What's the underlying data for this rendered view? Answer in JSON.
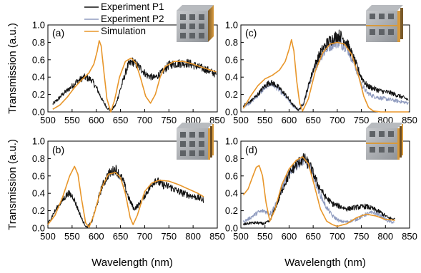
{
  "figure": {
    "legend": [
      {
        "name": "Experiment P1",
        "color": "#111111"
      },
      {
        "name": "Experiment P2",
        "color": "#8f9bbf"
      },
      {
        "name": "Simulation",
        "color": "#e8962a"
      }
    ],
    "ylabel": "Transmission (a.u.)",
    "xlabel": "Wavelength (nm)",
    "colors": {
      "p1": "#111111",
      "p2": "#8f9bbf",
      "sim": "#e8962a"
    },
    "inset_icon": "nanostructure-stack-icon"
  },
  "chart_data": [
    {
      "type": "line",
      "panel": "(a)",
      "xlim": [
        500,
        850
      ],
      "ylim": [
        0,
        1.0
      ],
      "xticks": [
        500,
        550,
        600,
        650,
        700,
        750,
        800,
        850
      ],
      "yticks": [
        0.0,
        0.2,
        0.4,
        0.6,
        0.8,
        1.0
      ],
      "xlabel": "",
      "ylabel": "Transmission (a.u.)",
      "series": [
        {
          "name": "Experiment P1",
          "key": "p1",
          "noisy": true,
          "x": [
            510,
            520,
            530,
            545,
            560,
            575,
            590,
            602,
            612,
            622,
            630,
            640,
            652,
            665,
            675,
            690,
            705,
            720,
            735,
            750,
            770,
            790,
            810,
            830,
            848
          ],
          "y": [
            0.09,
            0.14,
            0.2,
            0.27,
            0.35,
            0.4,
            0.37,
            0.26,
            0.14,
            0.05,
            0.01,
            0.08,
            0.3,
            0.53,
            0.58,
            0.51,
            0.42,
            0.39,
            0.45,
            0.54,
            0.56,
            0.56,
            0.52,
            0.48,
            0.43
          ]
        },
        {
          "name": "Simulation",
          "key": "sim",
          "noisy": false,
          "x": [
            510,
            525,
            540,
            555,
            570,
            585,
            595,
            602,
            606,
            610,
            616,
            622,
            630,
            638,
            648,
            660,
            672,
            682,
            692,
            702,
            712,
            722,
            732,
            742,
            760,
            780,
            800,
            820,
            848
          ],
          "y": [
            0.03,
            0.08,
            0.17,
            0.28,
            0.37,
            0.45,
            0.55,
            0.7,
            0.82,
            0.76,
            0.45,
            0.15,
            0.0,
            0.14,
            0.4,
            0.58,
            0.62,
            0.56,
            0.38,
            0.18,
            0.1,
            0.2,
            0.4,
            0.52,
            0.58,
            0.58,
            0.55,
            0.51,
            0.46
          ]
        }
      ]
    },
    {
      "type": "line",
      "panel": "(c)",
      "xlim": [
        500,
        850
      ],
      "ylim": [
        0,
        1.0
      ],
      "xticks": [
        500,
        550,
        600,
        650,
        700,
        750,
        800,
        850
      ],
      "yticks": [
        0.0,
        0.2,
        0.4,
        0.6,
        0.8,
        1.0
      ],
      "xlabel": "",
      "ylabel": "",
      "series": [
        {
          "name": "Experiment P1",
          "key": "p1",
          "noisy": true,
          "x": [
            505,
            520,
            535,
            550,
            560,
            570,
            582,
            595,
            608,
            620,
            630,
            640,
            652,
            665,
            680,
            695,
            705,
            720,
            735,
            750,
            762,
            775,
            790,
            810,
            830,
            848
          ],
          "y": [
            0.07,
            0.12,
            0.2,
            0.3,
            0.34,
            0.32,
            0.26,
            0.18,
            0.08,
            0.02,
            0.1,
            0.3,
            0.52,
            0.68,
            0.8,
            0.86,
            0.88,
            0.8,
            0.6,
            0.4,
            0.3,
            0.27,
            0.24,
            0.22,
            0.18,
            0.14
          ]
        },
        {
          "name": "Experiment P2",
          "key": "p2",
          "noisy": true,
          "x": [
            505,
            520,
            535,
            550,
            560,
            570,
            582,
            595,
            608,
            620,
            630,
            640,
            652,
            665,
            680,
            695,
            705,
            720,
            735,
            750,
            762,
            775,
            790,
            810,
            830,
            848
          ],
          "y": [
            0.06,
            0.11,
            0.19,
            0.28,
            0.32,
            0.3,
            0.24,
            0.16,
            0.07,
            0.02,
            0.09,
            0.28,
            0.48,
            0.63,
            0.74,
            0.8,
            0.8,
            0.74,
            0.56,
            0.32,
            0.22,
            0.18,
            0.16,
            0.14,
            0.12,
            0.1
          ]
        },
        {
          "name": "Simulation",
          "key": "sim",
          "noisy": false,
          "x": [
            505,
            520,
            535,
            550,
            565,
            580,
            592,
            600,
            605,
            610,
            616,
            622,
            628,
            640,
            655,
            670,
            685,
            700,
            715,
            730,
            745,
            755,
            765,
            775,
            790,
            810,
            848
          ],
          "y": [
            0.04,
            0.18,
            0.3,
            0.38,
            0.42,
            0.48,
            0.58,
            0.72,
            0.83,
            0.7,
            0.35,
            0.1,
            0.01,
            0.15,
            0.48,
            0.68,
            0.78,
            0.8,
            0.78,
            0.66,
            0.4,
            0.18,
            0.05,
            0.01,
            0.0,
            0.0,
            0.0
          ]
        }
      ]
    },
    {
      "type": "line",
      "panel": "(b)",
      "xlim": [
        500,
        850
      ],
      "ylim": [
        0,
        1.0
      ],
      "xticks": [
        500,
        550,
        600,
        650,
        700,
        750,
        800,
        850
      ],
      "yticks": [
        0.0,
        0.2,
        0.4,
        0.6,
        0.8,
        1.0
      ],
      "xlabel": "Wavelength (nm)",
      "ylabel": "Transmission (a.u.)",
      "series": [
        {
          "name": "Experiment P1",
          "key": "p1",
          "noisy": true,
          "x": [
            500,
            515,
            530,
            542,
            552,
            562,
            572,
            580,
            590,
            600,
            612,
            625,
            640,
            655,
            668,
            678,
            690,
            705,
            715,
            722,
            735,
            750,
            770,
            790,
            810,
            822
          ],
          "y": [
            0.05,
            0.2,
            0.32,
            0.4,
            0.36,
            0.22,
            0.08,
            0.01,
            0.06,
            0.25,
            0.48,
            0.62,
            0.68,
            0.55,
            0.33,
            0.22,
            0.28,
            0.42,
            0.5,
            0.56,
            0.5,
            0.48,
            0.42,
            0.38,
            0.35,
            0.32
          ]
        },
        {
          "name": "Simulation",
          "key": "sim",
          "noisy": false,
          "x": [
            500,
            515,
            530,
            545,
            555,
            562,
            570,
            578,
            585,
            595,
            610,
            625,
            640,
            650,
            660,
            670,
            676,
            685,
            700,
            715,
            730,
            750,
            770,
            790,
            810,
            822
          ],
          "y": [
            0.04,
            0.15,
            0.35,
            0.6,
            0.71,
            0.62,
            0.32,
            0.06,
            0.01,
            0.15,
            0.45,
            0.62,
            0.64,
            0.58,
            0.4,
            0.12,
            0.04,
            0.15,
            0.42,
            0.52,
            0.55,
            0.54,
            0.5,
            0.45,
            0.4,
            0.36
          ]
        }
      ]
    },
    {
      "type": "line",
      "panel": "(d)",
      "xlim": [
        500,
        850
      ],
      "ylim": [
        0,
        1.0
      ],
      "xticks": [
        500,
        550,
        600,
        650,
        700,
        750,
        800,
        850
      ],
      "yticks": [
        0.0,
        0.2,
        0.4,
        0.6,
        0.8,
        1.0
      ],
      "xlabel": "Wavelength (nm)",
      "ylabel": "",
      "series": [
        {
          "name": "Experiment P1",
          "key": "p1",
          "noisy": true,
          "x": [
            505,
            520,
            535,
            548,
            560,
            575,
            590,
            605,
            620,
            632,
            645,
            660,
            675,
            690,
            705,
            720,
            740,
            760,
            775,
            790,
            805,
            820
          ],
          "y": [
            0.04,
            0.06,
            0.06,
            0.05,
            0.08,
            0.28,
            0.5,
            0.66,
            0.76,
            0.8,
            0.7,
            0.5,
            0.36,
            0.28,
            0.25,
            0.22,
            0.24,
            0.25,
            0.22,
            0.18,
            0.12,
            0.1
          ]
        },
        {
          "name": "Experiment P2",
          "key": "p2",
          "noisy": true,
          "x": [
            505,
            520,
            535,
            548,
            560,
            575,
            590,
            605,
            620,
            632,
            645,
            660,
            675,
            690,
            705,
            720,
            740,
            760,
            775,
            790,
            805,
            820
          ],
          "y": [
            0.07,
            0.12,
            0.18,
            0.2,
            0.16,
            0.3,
            0.52,
            0.67,
            0.75,
            0.78,
            0.68,
            0.45,
            0.26,
            0.14,
            0.08,
            0.07,
            0.1,
            0.16,
            0.18,
            0.14,
            0.08,
            0.06
          ]
        },
        {
          "name": "Simulation",
          "key": "sim",
          "noisy": false,
          "x": [
            505,
            515,
            525,
            532,
            538,
            545,
            552,
            560,
            570,
            585,
            600,
            615,
            628,
            640,
            652,
            665,
            678,
            690,
            700,
            720,
            740,
            760,
            780,
            800,
            820
          ],
          "y": [
            0.38,
            0.45,
            0.6,
            0.7,
            0.72,
            0.6,
            0.3,
            0.08,
            0.2,
            0.5,
            0.68,
            0.78,
            0.82,
            0.74,
            0.5,
            0.22,
            0.08,
            0.04,
            0.02,
            0.05,
            0.12,
            0.16,
            0.14,
            0.1,
            0.09
          ]
        }
      ]
    }
  ]
}
